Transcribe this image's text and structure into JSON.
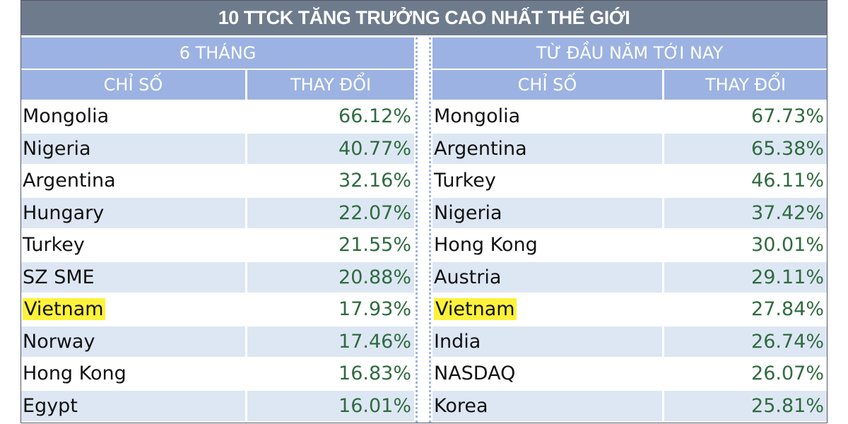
{
  "title": "10 TTCK TĂNG TRƯỞNG CAO NHẤT THẾ GIỚI",
  "tables": [
    {
      "header": "6 THÁNG",
      "columns": [
        "CHỈ SỐ",
        "THAY ĐỔI"
      ],
      "rows": [
        [
          "Mongolia",
          "66.12%"
        ],
        [
          "Nigeria",
          "40.77%"
        ],
        [
          "Argentina",
          "32.16%"
        ],
        [
          "Hungary",
          "22.07%"
        ],
        [
          "Turkey",
          "21.55%"
        ],
        [
          "SZ SME",
          "20.88%"
        ],
        [
          "Vietnam",
          "17.93%"
        ],
        [
          "Norway",
          "17.46%"
        ],
        [
          "Hong Kong",
          "16.83%"
        ],
        [
          "Egypt",
          "16.01%"
        ]
      ]
    },
    {
      "header": "TỪ ĐẦU NĂM TỚI NAY",
      "columns": [
        "CHỈ SỐ",
        "THAY ĐỔI"
      ],
      "rows": [
        [
          "Mongolia",
          "67.73%"
        ],
        [
          "Argentina",
          "65.38%"
        ],
        [
          "Turkey",
          "46.11%"
        ],
        [
          "Nigeria",
          "37.42%"
        ],
        [
          "Hong Kong",
          "30.01%"
        ],
        [
          "Austria",
          "29.11%"
        ],
        [
          "Vietnam",
          "27.84%"
        ],
        [
          "India",
          "26.74%"
        ],
        [
          "NASDAQ",
          "26.07%"
        ],
        [
          "Korea",
          "25.81%"
        ]
      ]
    }
  ]
}
